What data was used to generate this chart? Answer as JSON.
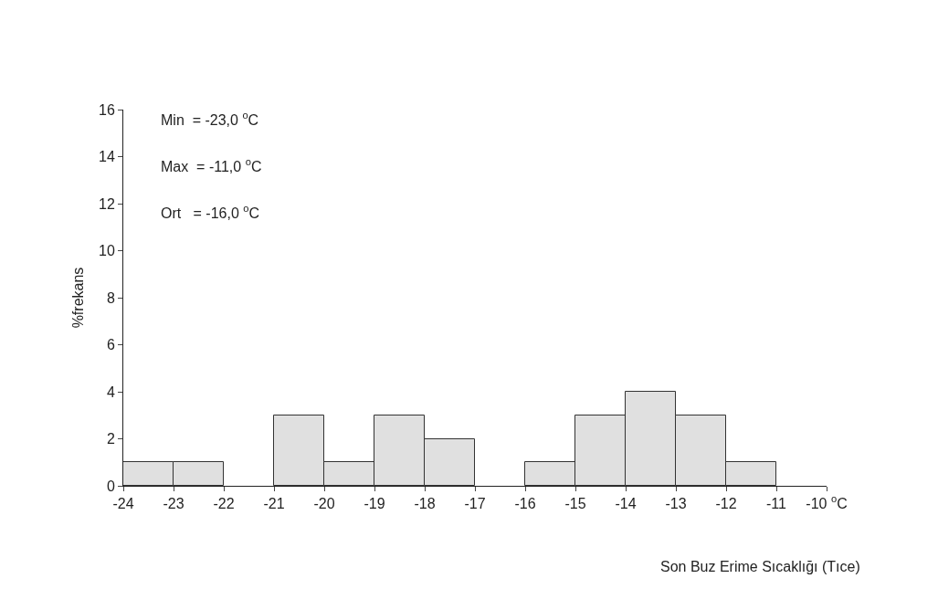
{
  "chart_data": {
    "type": "histogram",
    "xlabel": "Son Buz Erime Sıcaklığı (Tıce)",
    "ylabel": "%frekans",
    "bins": [
      -24,
      -23,
      -22,
      -21,
      -20,
      -19,
      -18,
      -17,
      -16,
      -15,
      -14,
      -13,
      -12,
      -11
    ],
    "values": [
      1,
      1,
      0,
      3,
      1,
      3,
      2,
      0,
      1,
      3,
      4,
      3,
      1
    ],
    "color": "#e0e0e0",
    "xlim": [
      -24,
      -10
    ],
    "xticks": [
      -24,
      -23,
      -22,
      -21,
      -20,
      -19,
      -18,
      -17,
      -16,
      -15,
      -14,
      -13,
      -12,
      -11,
      {
        "value": -10,
        "label": "-10 $^{o}$C"
      }
    ],
    "ylim": [
      0,
      16
    ],
    "yticks": [
      0,
      2,
      4,
      6,
      8,
      10,
      12,
      14,
      16
    ],
    "annotations": [
      "Min  = -23,0 $^{o}$C",
      "Max  = -11,0 $^{o}$C",
      "Ort   = -16,0 $^{o}$C"
    ]
  }
}
